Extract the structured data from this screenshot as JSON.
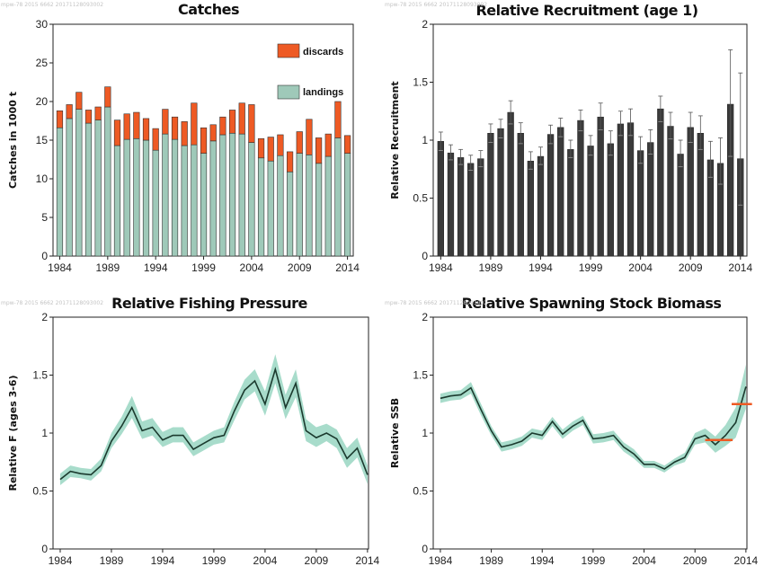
{
  "watermark": "mpw-78 2015 6662 20171128093002",
  "colors": {
    "discards": "#ee5a24",
    "landings": "#9fc9b9",
    "recruit_bar": "#3a3a3a",
    "band": "#a8dccb",
    "line": "#1b3a2e",
    "ref": "#ee5a24"
  },
  "chart_data": [
    {
      "id": "catches",
      "type": "bar",
      "title": "Catches",
      "ylabel": "Catches in 1000 t",
      "ylim": [
        0,
        30
      ],
      "yticks": [
        "0",
        "5",
        "10",
        "15",
        "20",
        "25",
        "30"
      ],
      "xticks": [
        "1984",
        "1989",
        "1994",
        "1999",
        "2004",
        "2009",
        "2014"
      ],
      "legend": [
        "discards",
        "landings"
      ],
      "legend_position": "top-right",
      "grid": false,
      "categories": [
        1984,
        1985,
        1986,
        1987,
        1988,
        1989,
        1990,
        1991,
        1992,
        1993,
        1994,
        1995,
        1996,
        1997,
        1998,
        1999,
        2000,
        2001,
        2002,
        2003,
        2004,
        2005,
        2006,
        2007,
        2008,
        2009,
        2010,
        2011,
        2012,
        2013,
        2014
      ],
      "series": [
        {
          "name": "landings",
          "values": [
            16.6,
            17.8,
            19.0,
            17.2,
            17.6,
            19.3,
            14.3,
            15.1,
            15.2,
            15.0,
            13.7,
            15.8,
            15.1,
            14.3,
            14.4,
            13.3,
            14.9,
            15.7,
            15.9,
            15.8,
            14.7,
            12.7,
            12.3,
            13.0,
            10.9,
            13.3,
            13.1,
            12.0,
            12.9,
            15.3,
            13.3
          ]
        },
        {
          "name": "discards",
          "values": [
            2.2,
            1.8,
            2.2,
            1.7,
            1.7,
            2.6,
            3.3,
            3.3,
            3.4,
            2.8,
            2.8,
            3.2,
            2.9,
            3.1,
            5.4,
            3.3,
            2.1,
            2.3,
            3.0,
            4.0,
            4.9,
            2.5,
            3.1,
            2.7,
            2.6,
            2.8,
            4.6,
            3.3,
            2.9,
            4.7,
            2.3
          ]
        }
      ]
    },
    {
      "id": "recruitment",
      "type": "bar",
      "title": "Relative Recruitment (age 1)",
      "ylabel": "Relative Recruitment",
      "ylim": [
        0,
        2
      ],
      "yticks": [
        "0",
        "0.5",
        "1",
        "1.5",
        "2"
      ],
      "xticks": [
        "1984",
        "1989",
        "1994",
        "1999",
        "2004",
        "2009",
        "2014"
      ],
      "grid": false,
      "categories": [
        1984,
        1985,
        1986,
        1987,
        1988,
        1989,
        1990,
        1991,
        1992,
        1993,
        1994,
        1995,
        1996,
        1997,
        1998,
        1999,
        2000,
        2001,
        2002,
        2003,
        2004,
        2005,
        2006,
        2007,
        2008,
        2009,
        2010,
        2011,
        2012,
        2013,
        2014
      ],
      "values": [
        0.99,
        0.89,
        0.85,
        0.8,
        0.84,
        1.06,
        1.1,
        1.24,
        1.06,
        0.82,
        0.86,
        1.05,
        1.11,
        0.92,
        1.17,
        0.95,
        1.2,
        0.97,
        1.14,
        1.15,
        0.91,
        0.98,
        1.27,
        1.12,
        0.88,
        1.11,
        1.06,
        0.83,
        0.8,
        1.31,
        0.84
      ],
      "upper": [
        1.07,
        0.96,
        0.92,
        0.87,
        0.91,
        1.14,
        1.18,
        1.34,
        1.15,
        0.9,
        0.94,
        1.13,
        1.19,
        1.0,
        1.26,
        1.04,
        1.32,
        1.08,
        1.25,
        1.27,
        1.03,
        1.09,
        1.38,
        1.24,
        1.0,
        1.24,
        1.21,
        0.99,
        1.02,
        1.78,
        1.58
      ],
      "lower": [
        0.91,
        0.83,
        0.79,
        0.74,
        0.77,
        0.98,
        1.02,
        1.14,
        0.97,
        0.75,
        0.79,
        0.97,
        1.03,
        0.85,
        1.08,
        0.87,
        1.09,
        0.87,
        1.04,
        1.04,
        0.8,
        0.88,
        1.16,
        1.01,
        0.77,
        0.98,
        0.92,
        0.68,
        0.62,
        0.86,
        0.44
      ]
    },
    {
      "id": "fishing",
      "type": "line",
      "title": "Relative Fishing Pressure",
      "ylabel": "Relative F (ages 3-6)",
      "ylim": [
        0,
        2
      ],
      "yticks": [
        "0",
        "0.5",
        "1",
        "1.5",
        "2"
      ],
      "xticks": [
        "1984",
        "1989",
        "1994",
        "1999",
        "2004",
        "2009",
        "2014"
      ],
      "grid": false,
      "x": [
        1984,
        1985,
        1986,
        1987,
        1988,
        1989,
        1990,
        1991,
        1992,
        1993,
        1994,
        1995,
        1996,
        1997,
        1998,
        1999,
        2000,
        2001,
        2002,
        2003,
        2004,
        2005,
        2006,
        2007,
        2008,
        2009,
        2010,
        2011,
        2012,
        2013,
        2014
      ],
      "y": [
        0.6,
        0.67,
        0.65,
        0.64,
        0.72,
        0.93,
        1.06,
        1.22,
        1.02,
        1.05,
        0.94,
        0.98,
        0.98,
        0.86,
        0.91,
        0.96,
        0.98,
        1.19,
        1.37,
        1.45,
        1.25,
        1.55,
        1.22,
        1.43,
        1.02,
        0.96,
        1.0,
        0.95,
        0.78,
        0.87,
        0.64
      ],
      "upper": [
        0.65,
        0.72,
        0.7,
        0.69,
        0.78,
        1.0,
        1.14,
        1.32,
        1.1,
        1.13,
        1.01,
        1.05,
        1.05,
        0.92,
        0.97,
        1.02,
        1.05,
        1.27,
        1.46,
        1.55,
        1.36,
        1.68,
        1.33,
        1.55,
        1.12,
        1.05,
        1.08,
        1.03,
        0.87,
        0.96,
        0.72
      ],
      "lower": [
        0.55,
        0.62,
        0.61,
        0.59,
        0.67,
        0.87,
        0.99,
        1.13,
        0.95,
        0.98,
        0.88,
        0.92,
        0.92,
        0.8,
        0.85,
        0.9,
        0.92,
        1.11,
        1.29,
        1.36,
        1.15,
        1.43,
        1.12,
        1.31,
        0.93,
        0.88,
        0.93,
        0.87,
        0.7,
        0.79,
        0.56
      ]
    },
    {
      "id": "ssb",
      "type": "line",
      "title": "Relative Spawning Stock Biomass",
      "ylabel": "Relative SSB",
      "ylim": [
        0,
        2
      ],
      "yticks": [
        "0",
        "0.5",
        "1",
        "1.5",
        "2"
      ],
      "xticks": [
        "1984",
        "1989",
        "1994",
        "1999",
        "2004",
        "2009",
        "2014"
      ],
      "grid": false,
      "x": [
        1984,
        1985,
        1986,
        1987,
        1988,
        1989,
        1990,
        1991,
        1992,
        1993,
        1994,
        1995,
        1996,
        1997,
        1998,
        1999,
        2000,
        2001,
        2002,
        2003,
        2004,
        2005,
        2006,
        2007,
        2008,
        2009,
        2010,
        2011,
        2012,
        2013,
        2014
      ],
      "y": [
        1.3,
        1.32,
        1.33,
        1.39,
        1.2,
        1.02,
        0.88,
        0.9,
        0.93,
        1.0,
        0.98,
        1.1,
        0.99,
        1.06,
        1.11,
        0.95,
        0.96,
        0.98,
        0.88,
        0.82,
        0.73,
        0.73,
        0.69,
        0.75,
        0.79,
        0.95,
        0.98,
        0.9,
        0.98,
        1.09,
        1.4
      ],
      "upper": [
        1.34,
        1.36,
        1.37,
        1.44,
        1.25,
        1.06,
        0.92,
        0.94,
        0.97,
        1.04,
        1.02,
        1.14,
        1.03,
        1.1,
        1.15,
        0.99,
        1.0,
        1.02,
        0.92,
        0.86,
        0.76,
        0.76,
        0.72,
        0.78,
        0.83,
        1.0,
        1.04,
        0.97,
        1.07,
        1.22,
        1.59
      ],
      "lower": [
        1.26,
        1.28,
        1.29,
        1.34,
        1.15,
        0.98,
        0.84,
        0.86,
        0.89,
        0.96,
        0.94,
        1.06,
        0.95,
        1.02,
        1.07,
        0.91,
        0.92,
        0.94,
        0.84,
        0.78,
        0.7,
        0.7,
        0.66,
        0.72,
        0.75,
        0.9,
        0.92,
        0.83,
        0.89,
        0.96,
        1.21
      ],
      "reference_segments": [
        {
          "x0": 2010,
          "x1": 2012.7,
          "y": 0.94
        },
        {
          "x0": 2012.6,
          "x1": 2014.6,
          "y": 1.25
        }
      ]
    }
  ]
}
